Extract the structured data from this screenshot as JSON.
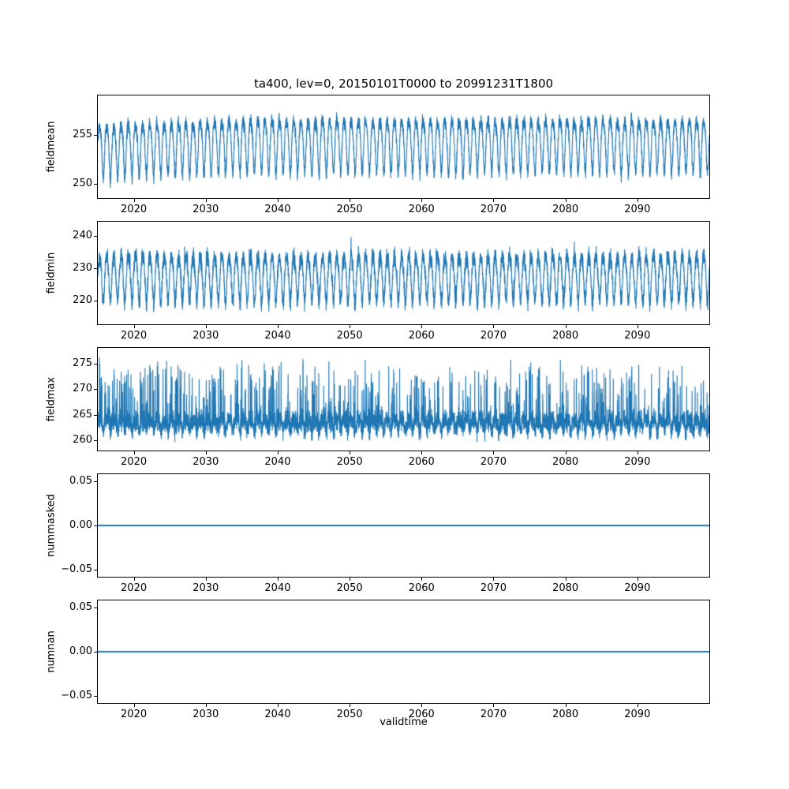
{
  "figure": {
    "title": "ta400, lev=0, 20150101T0000 to 20991231T1800",
    "xlabel": "validtime"
  },
  "style": {
    "line_color": "#1f77b4",
    "axis_color": "#000000",
    "background": "#ffffff"
  },
  "x_axis": {
    "label": "validtime",
    "lim": [
      2015,
      2100
    ],
    "ticks": [
      2020,
      2030,
      2040,
      2050,
      2060,
      2070,
      2080,
      2090
    ],
    "tick_labels": [
      "2020",
      "2030",
      "2040",
      "2050",
      "2060",
      "2070",
      "2080",
      "2090"
    ]
  },
  "chart_data": [
    {
      "type": "line",
      "ylabel": "fieldmean",
      "ylim": [
        248.5,
        259.1
      ],
      "yticks": [
        250,
        255
      ],
      "ytick_labels": [
        "250",
        "255"
      ],
      "series_summary": "dense annual oscillation of field mean, roughly 249.5 to 258.5, centered near 254 with a slight upward drift over 2015-2035",
      "value_range": [
        249.0,
        258.6
      ],
      "line_width": 1.1,
      "gen": {
        "type": "noisy",
        "seed": 11,
        "base": 253.7,
        "ramp": 0.55,
        "rampYears": 20,
        "amp": 2.6,
        "amp2": 0.55,
        "noise": 0.55,
        "clip": [
          249.0,
          258.8
        ],
        "points": 6000
      }
    },
    {
      "type": "line",
      "ylabel": "fieldmin",
      "ylim": [
        212.5,
        244.5
      ],
      "yticks": [
        220,
        230,
        240
      ],
      "ytick_labels": [
        "220",
        "230",
        "240"
      ],
      "series_summary": "dense annual oscillation of field minimum, roughly 214 to 243, centered near 228, stationary over the whole period",
      "value_range": [
        214.0,
        243.0
      ],
      "line_width": 1.1,
      "gen": {
        "type": "noisy",
        "seed": 22,
        "base": 227.5,
        "amp": 7.0,
        "amp2": 1.2,
        "noise": 2.0,
        "spike": 4.5,
        "spikeP": 0.985,
        "clip": [
          213.5,
          243.5
        ],
        "points": 6000
      }
    },
    {
      "type": "line",
      "ylabel": "fieldmax",
      "ylim": [
        258.0,
        278.0
      ],
      "yticks": [
        260,
        265,
        270,
        275
      ],
      "ytick_labels": [
        "260",
        "265",
        "270",
        "275"
      ],
      "series_summary": "noisy field maximum, dense band near 260-268 with frequent upward spikes reaching about 272-277, stationary over the whole period",
      "value_range": [
        259.3,
        277.0
      ],
      "line_width": 1.1,
      "gen": {
        "type": "noisy",
        "seed": 33,
        "base": 263.3,
        "amp": 1.0,
        "amp2": 0.5,
        "noise": 1.4,
        "spike": 11,
        "spikeP": 0.9,
        "clip": [
          259.3,
          277.3
        ],
        "points": 6000
      }
    },
    {
      "type": "line",
      "ylabel": "nummasked",
      "ylim": [
        -0.0585,
        0.0585
      ],
      "yticks": [
        -0.05,
        0.0,
        0.05
      ],
      "ytick_labels": [
        "−0.05",
        "0.00",
        "0.05"
      ],
      "series_summary": "constant zero masked-point count for the entire period",
      "value_range": [
        0,
        0
      ],
      "line_width": 1.8,
      "gen": {
        "type": "constant",
        "value": 0
      }
    },
    {
      "type": "line",
      "ylabel": "numnan",
      "ylim": [
        -0.0585,
        0.0585
      ],
      "yticks": [
        -0.05,
        0.0,
        0.05
      ],
      "ytick_labels": [
        "−0.05",
        "0.00",
        "0.05"
      ],
      "series_summary": "constant zero NaN count for the entire period",
      "value_range": [
        0,
        0
      ],
      "line_width": 1.8,
      "gen": {
        "type": "constant",
        "value": 0
      }
    }
  ]
}
